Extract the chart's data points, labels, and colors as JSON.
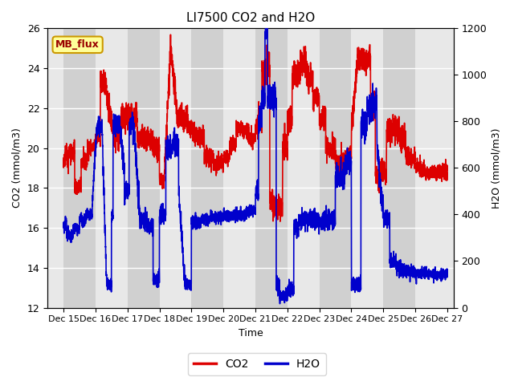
{
  "title": "LI7500 CO2 and H2O",
  "xlabel": "Time",
  "ylabel_left": "CO2 (mmol/m3)",
  "ylabel_right": "H2O (mmol/m3)",
  "xlim": [
    14.5,
    27.2
  ],
  "ylim_left": [
    12,
    26
  ],
  "ylim_right": [
    0,
    1200
  ],
  "xticks": [
    15,
    16,
    17,
    18,
    19,
    20,
    21,
    22,
    23,
    24,
    25,
    26,
    27
  ],
  "xtick_labels": [
    "Dec 15",
    "Dec 16",
    "Dec 17",
    "Dec 18",
    "Dec 19",
    "Dec 20",
    "Dec 21",
    "Dec 22",
    "Dec 23",
    "Dec 24",
    "Dec 25",
    "Dec 26",
    "Dec 27"
  ],
  "yticks_left": [
    12,
    14,
    16,
    18,
    20,
    22,
    24,
    26
  ],
  "yticks_right": [
    0,
    200,
    400,
    600,
    800,
    1000,
    1200
  ],
  "co2_color": "#dd0000",
  "h2o_color": "#0000cc",
  "fig_bg_color": "#ffffff",
  "plot_bg_light": "#e8e8e8",
  "plot_bg_dark": "#d0d0d0",
  "grid_color": "#ffffff",
  "annotation_text": "MB_flux",
  "annotation_bg": "#ffff99",
  "annotation_border": "#cc9900",
  "legend_co2": "CO2",
  "legend_h2o": "H2O",
  "linewidth": 1.2
}
